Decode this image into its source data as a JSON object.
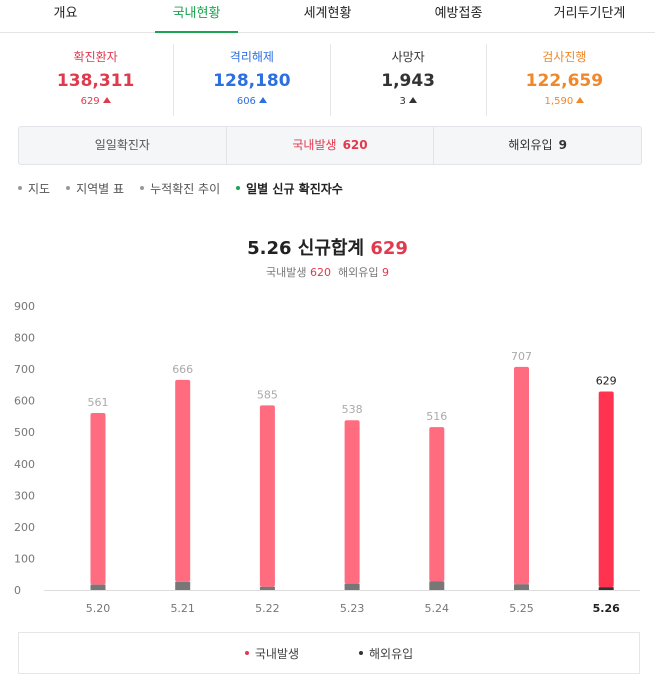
{
  "tabs": [
    {
      "label": "개요",
      "active": false
    },
    {
      "label": "국내현황",
      "active": true
    },
    {
      "label": "세계현황",
      "active": false
    },
    {
      "label": "예방접종",
      "active": false
    },
    {
      "label": "거리두기단계",
      "active": false
    }
  ],
  "stats": [
    {
      "label": "확진환자",
      "value": "138,311",
      "change": "629",
      "color": "#e03a4e",
      "change_color": "#e03a4e"
    },
    {
      "label": "격리해제",
      "value": "128,180",
      "change": "606",
      "color": "#2c6fe0",
      "change_color": "#2c6fe0"
    },
    {
      "label": "사망자",
      "value": "1,943",
      "change": "3",
      "color": "#333333",
      "change_color": "#333333"
    },
    {
      "label": "검사진행",
      "value": "122,659",
      "change": "1,590",
      "color": "#f0882a",
      "change_color": "#f0882a"
    }
  ],
  "daily": {
    "label": "일일확진자",
    "domestic_label": "국내발생",
    "domestic_value": "620",
    "overseas_label": "해외유입",
    "overseas_value": "9"
  },
  "subnav": [
    {
      "label": "지도",
      "active": false
    },
    {
      "label": "지역별 표",
      "active": false
    },
    {
      "label": "누적확진 추이",
      "active": false
    },
    {
      "label": "일별 신규 확진자수",
      "active": true
    }
  ],
  "headline": {
    "date": "5.26",
    "text": "신규합계",
    "total": "629"
  },
  "subline": {
    "domestic_label": "국내발생",
    "domestic_value": "620",
    "overseas_label": "해외유입",
    "overseas_value": "9"
  },
  "colors": {
    "accent": "#1ba351",
    "domestic": "#ff6b7f",
    "domestic_highlight": "#ff3350",
    "overseas": "#777777",
    "overseas_highlight": "#333333"
  },
  "chart_data": {
    "type": "bar",
    "stacked": true,
    "categories": [
      "5.20",
      "5.21",
      "5.22",
      "5.23",
      "5.24",
      "5.25",
      "5.26"
    ],
    "series": [
      {
        "name": "국내발생",
        "values": [
          544,
          640,
          575,
          518,
          489,
          689,
          620
        ]
      },
      {
        "name": "해외유입",
        "values": [
          17,
          26,
          10,
          20,
          27,
          18,
          9
        ]
      }
    ],
    "totals": [
      561,
      666,
      585,
      538,
      516,
      707,
      629
    ],
    "yticks": [
      0,
      100,
      200,
      300,
      400,
      500,
      600,
      700,
      800,
      900
    ],
    "ylim": [
      0,
      900
    ],
    "highlight_index": 6,
    "grid": false
  },
  "legend": [
    {
      "label": "국내발생",
      "color": "#e03a4e"
    },
    {
      "label": "해외유입",
      "color": "#333333"
    }
  ]
}
